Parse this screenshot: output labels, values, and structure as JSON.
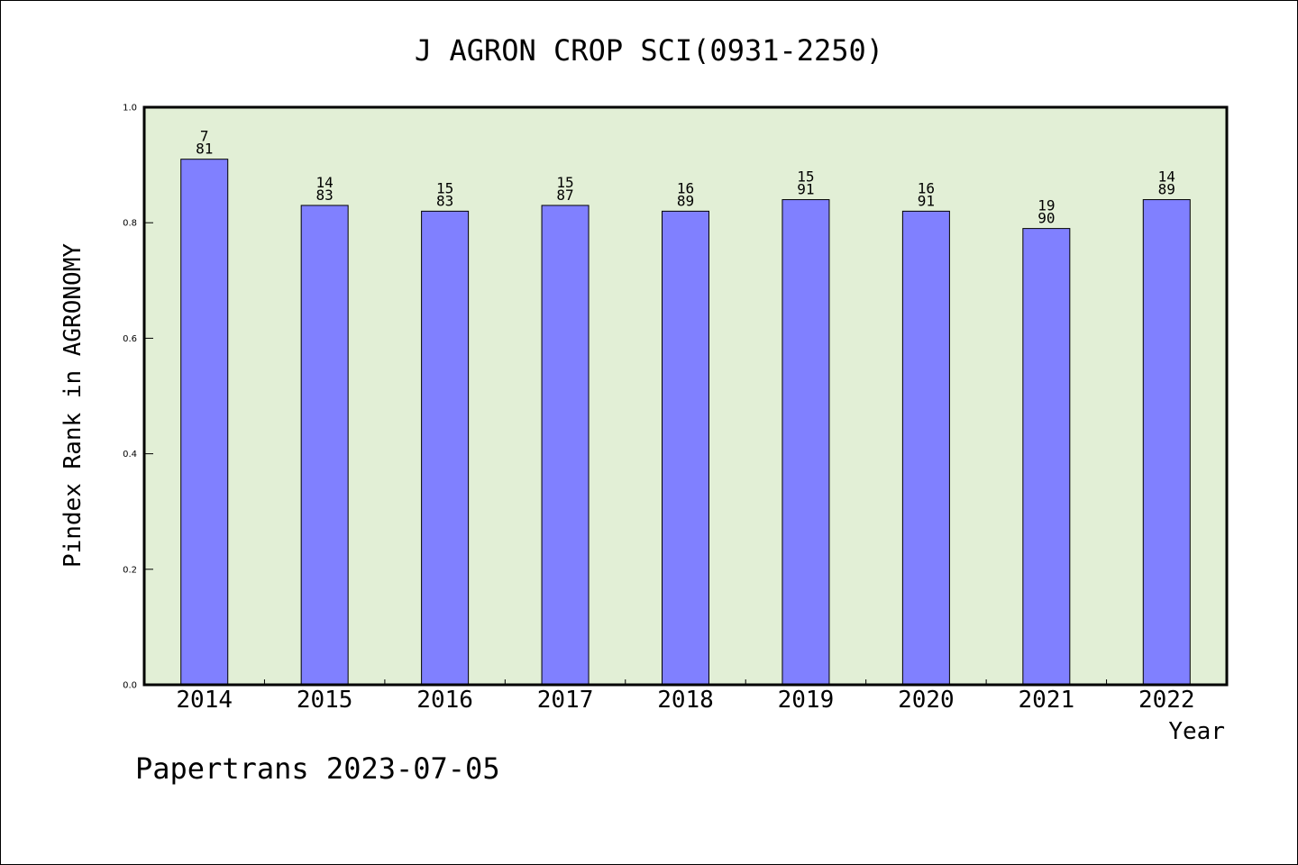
{
  "chart_data": {
    "type": "bar",
    "title": "J AGRON CROP SCI(0931-2250)",
    "xlabel": "Year",
    "ylabel": "Pindex Rank in AGRONOMY",
    "categories": [
      "2014",
      "2015",
      "2016",
      "2017",
      "2018",
      "2019",
      "2020",
      "2021",
      "2022"
    ],
    "values": [
      0.91,
      0.83,
      0.82,
      0.83,
      0.82,
      0.84,
      0.82,
      0.79,
      0.84
    ],
    "rank": [
      "7",
      "14",
      "15",
      "15",
      "16",
      "15",
      "16",
      "19",
      "14"
    ],
    "total": [
      "81",
      "83",
      "83",
      "87",
      "89",
      "91",
      "91",
      "90",
      "89"
    ],
    "ylim": [
      0,
      1.0
    ],
    "yticks": [
      "0.0",
      "0.2",
      "0.4",
      "0.6",
      "0.8",
      "1.0"
    ],
    "grid": false,
    "colors": {
      "bar_fill": "#8080ff",
      "plot_bg": "#e2efd6",
      "axis": "#000000"
    }
  },
  "footer": {
    "text": "Papertrans 2023-07-05"
  }
}
